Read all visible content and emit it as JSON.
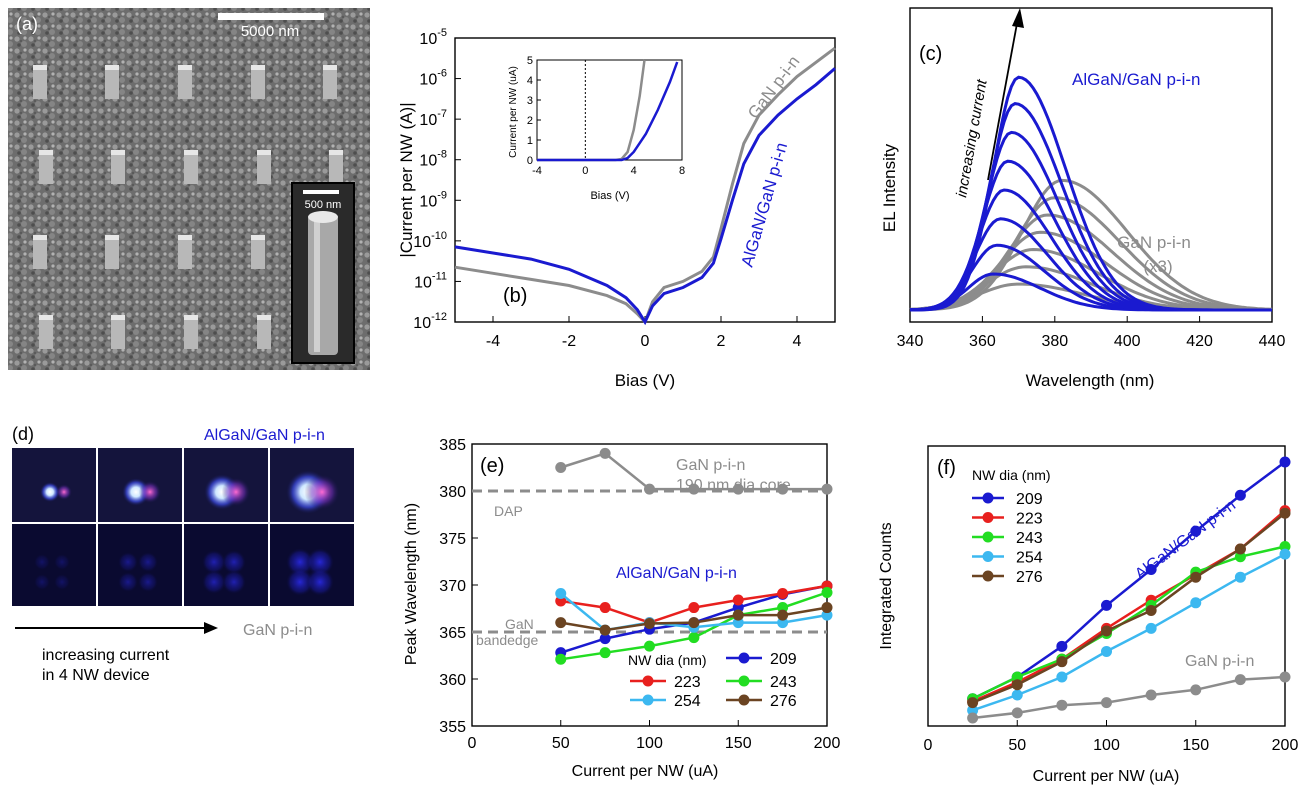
{
  "colors": {
    "blue": "#1a1ad0",
    "gray": "#8c8c8c",
    "red": "#e8201e",
    "green": "#22dd22",
    "cyan": "#3cb8f0",
    "brown": "#6b4422",
    "darkblue": "#1a1ad0"
  },
  "panel_a": {
    "label": "(a)",
    "scale_main": "5000 nm",
    "scale_inset": "500 nm"
  },
  "panel_d": {
    "label": "(d)",
    "title_blue": "AlGaN/GaN p-i-n",
    "title_gray": "GaN p-i-n",
    "caption1": "increasing current",
    "caption2": "in 4 NW device"
  },
  "chart_data": [
    {
      "panel": "(b)",
      "type": "line",
      "xlabel": "Bias (V)",
      "ylabel": "|Current per NW (A)|",
      "xlim": [
        -5,
        5
      ],
      "ylim_log10": [
        -12,
        -5
      ],
      "yscale": "log",
      "xticks": [
        "-4",
        "-2",
        "0",
        "2",
        "4"
      ],
      "yticks": [
        "10^-12",
        "10^-11",
        "10^-10",
        "10^-9",
        "10^-8",
        "10^-7",
        "10^-6",
        "10^-5"
      ],
      "series": [
        {
          "name": "GaN p-i-n",
          "color": "gray",
          "x": [
            -5,
            -4,
            -3,
            -2,
            -1,
            -0.5,
            -0.2,
            0,
            0.2,
            0.5,
            1,
            1.5,
            1.8,
            2,
            2.3,
            2.6,
            3,
            3.5,
            4,
            4.5,
            5
          ],
          "log10y": [
            -10.65,
            -10.8,
            -10.95,
            -11.1,
            -11.35,
            -11.55,
            -11.8,
            -12,
            -11.5,
            -11.15,
            -11.0,
            -10.75,
            -10.4,
            -9.7,
            -8.6,
            -7.6,
            -6.9,
            -6.4,
            -5.95,
            -5.6,
            -5.25
          ]
        },
        {
          "name": "AlGaN/GaN p-i-n",
          "color": "blue",
          "x": [
            -5,
            -4,
            -3,
            -2,
            -1,
            -0.5,
            -0.2,
            0,
            0.2,
            0.5,
            1,
            1.5,
            1.8,
            2,
            2.3,
            2.6,
            3,
            3.5,
            4,
            4.5,
            5
          ],
          "log10y": [
            -10.15,
            -10.3,
            -10.45,
            -10.7,
            -11.1,
            -11.4,
            -11.7,
            -12,
            -11.6,
            -11.3,
            -11.15,
            -10.9,
            -10.55,
            -9.95,
            -9.0,
            -8.1,
            -7.4,
            -6.9,
            -6.5,
            -6.15,
            -5.75
          ]
        }
      ],
      "annotations": [
        "(b)",
        "GaN p-i-n",
        "AlGaN/GaN p-i-n"
      ],
      "inset": {
        "type": "line",
        "xlabel": "Bias (V)",
        "ylabel": "Current per NW (uA)",
        "xlim": [
          -4,
          8
        ],
        "ylim": [
          0,
          5
        ],
        "xticks": [
          "-4",
          "0",
          "4",
          "8"
        ],
        "yticks": [
          "0",
          "1",
          "2",
          "3",
          "4",
          "5"
        ],
        "series": [
          {
            "name": "GaN p-i-n",
            "color": "gray",
            "x": [
              -4,
              2.5,
              3,
              3.5,
              4,
              4.5,
              4.9
            ],
            "y": [
              0,
              0,
              0.05,
              0.4,
              1.5,
              3.2,
              5
            ]
          },
          {
            "name": "AlGaN/GaN p-i-n",
            "color": "blue",
            "x": [
              -4,
              3,
              3.5,
              4,
              5,
              6,
              7,
              7.6
            ],
            "y": [
              0,
              0,
              0.1,
              0.4,
              1.3,
              2.5,
              3.9,
              4.9
            ]
          }
        ]
      }
    },
    {
      "panel": "(c)",
      "type": "line",
      "xlabel": "Wavelength (nm)",
      "ylabel": "EL Intensity",
      "xlim": [
        340,
        440
      ],
      "xticks": [
        "340",
        "360",
        "380",
        "400",
        "420",
        "440"
      ],
      "annotations": [
        "(c)",
        "AlGaN/GaN p-i-n",
        "increasing current",
        "GaN p-i-n",
        "(x3)"
      ],
      "blue_peaks": {
        "center": [
          363,
          364,
          365,
          366,
          367,
          368,
          369,
          370
        ],
        "height": [
          0.15,
          0.27,
          0.38,
          0.5,
          0.62,
          0.74,
          0.86,
          0.97
        ]
      },
      "gray_peaks": {
        "center": [
          370,
          372,
          374,
          376,
          378,
          380,
          382
        ],
        "height": [
          0.12,
          0.2,
          0.28,
          0.36,
          0.44,
          0.52,
          0.6
        ]
      }
    },
    {
      "panel": "(e)",
      "type": "line",
      "xlabel": "Current per NW (uA)",
      "ylabel": "Peak Wavelength (nm)",
      "xlim": [
        0,
        200
      ],
      "ylim": [
        355,
        385
      ],
      "xticks": [
        "0",
        "50",
        "100",
        "150",
        "200"
      ],
      "yticks": [
        "355",
        "360",
        "365",
        "370",
        "375",
        "380",
        "385"
      ],
      "x": [
        50,
        75,
        100,
        125,
        150,
        175,
        200
      ],
      "series": [
        {
          "name": "209",
          "color": "darkblue",
          "values": [
            362.8,
            364.3,
            365.3,
            366,
            367.6,
            369,
            369.9
          ]
        },
        {
          "name": "223",
          "color": "red",
          "values": [
            368.3,
            367.6,
            366,
            367.6,
            368.4,
            369.1,
            369.9
          ]
        },
        {
          "name": "243",
          "color": "green",
          "values": [
            362.1,
            362.8,
            363.5,
            364.4,
            366.8,
            367.6,
            369.2
          ]
        },
        {
          "name": "254",
          "color": "cyan",
          "values": [
            369.1,
            365.2,
            366,
            365.5,
            366,
            366,
            366.8
          ]
        },
        {
          "name": "276",
          "color": "brown",
          "values": [
            366,
            365.2,
            365.9,
            366,
            366.8,
            366.8,
            367.6
          ]
        },
        {
          "name": "GaN p-i-n",
          "color": "gray",
          "values": [
            382.5,
            384,
            380.2,
            380.2,
            380.2,
            380.2,
            380.2
          ]
        }
      ],
      "reference_lines": [
        {
          "label": "DAP",
          "y": 380
        },
        {
          "label": "GaN bandedge",
          "y": 365
        }
      ],
      "annotations": [
        "(e)",
        "GaN p-i-n",
        "190 nm dia core",
        "AlGaN/GaN p-i-n",
        "DAP",
        "GaN",
        "bandedge"
      ],
      "legend_title": "NW dia (nm)"
    },
    {
      "panel": "(f)",
      "type": "line",
      "xlabel": "Current per NW (uA)",
      "ylabel": "Integrated Counts",
      "xlim": [
        0,
        200
      ],
      "ylim": [
        0,
        1
      ],
      "xticks": [
        "0",
        "50",
        "100",
        "150",
        "200"
      ],
      "x": [
        25,
        50,
        75,
        100,
        125,
        150,
        175,
        200
      ],
      "series": [
        {
          "name": "209",
          "color": "darkblue",
          "values": [
            0.075,
            0.16,
            0.28,
            0.44,
            0.58,
            0.73,
            0.87,
            1.0
          ]
        },
        {
          "name": "223",
          "color": "red",
          "values": [
            0.065,
            0.14,
            0.23,
            0.35,
            0.46,
            0.56,
            0.66,
            0.81
          ]
        },
        {
          "name": "243",
          "color": "green",
          "values": [
            0.075,
            0.16,
            0.23,
            0.33,
            0.44,
            0.57,
            0.63,
            0.67
          ]
        },
        {
          "name": "254",
          "color": "cyan",
          "values": [
            0.03,
            0.09,
            0.16,
            0.26,
            0.35,
            0.45,
            0.55,
            0.64
          ]
        },
        {
          "name": "276",
          "color": "brown",
          "values": [
            0.06,
            0.13,
            0.22,
            0.34,
            0.42,
            0.55,
            0.66,
            0.8
          ]
        },
        {
          "name": "GaN p-i-n",
          "color": "gray",
          "values": [
            0.0,
            0.02,
            0.05,
            0.06,
            0.09,
            0.11,
            0.15,
            0.16
          ]
        }
      ],
      "annotations": [
        "(f)",
        "AlGaN/GaN p-i-n",
        "GaN p-i-n"
      ],
      "legend_title": "NW dia (nm)"
    }
  ]
}
